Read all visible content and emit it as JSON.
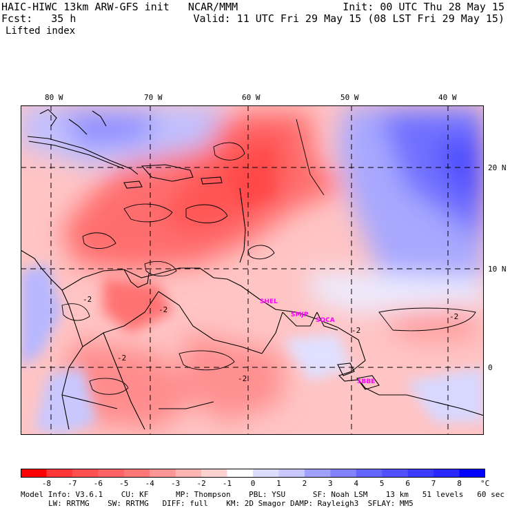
{
  "header": {
    "left_line1": "HAIC-HIWC 13km ARW-GFS init   NCAR/MMM",
    "left_line2": "Fcst:   35 h",
    "field": "Lifted index",
    "right_line1": "Init: 00 UTC Thu 28 May 15",
    "right_line2": "Valid: 11 UTC Fri 29 May 15 (08 LST Fri 29 May 15)"
  },
  "map": {
    "lon_labels": [
      "80 W",
      "70 W",
      "60 W",
      "50 W",
      "40 W"
    ],
    "lat_labels": [
      "20 N",
      "10 N",
      "0"
    ],
    "stations": [
      "SHEL",
      "SMJP",
      "SOCA",
      "SBBE"
    ],
    "contour_labels": [
      "-2",
      "-2",
      "-2",
      "-2",
      "-2",
      "-2"
    ]
  },
  "colorbar": {
    "labels": [
      "-8",
      "-7",
      "-6",
      "-5",
      "-4",
      "-3",
      "-2",
      "-1",
      "0",
      "1",
      "2",
      "3",
      "4",
      "5",
      "6",
      "7",
      "8"
    ],
    "unit": "°C",
    "colors": [
      "#ff0000",
      "#ff3636",
      "#ff5050",
      "#ff6464",
      "#ff7878",
      "#ff9696",
      "#ffb4b4",
      "#ffd2d2",
      "#ffffff",
      "#dcdcff",
      "#c8c8ff",
      "#a0a0ff",
      "#8282ff",
      "#6464ff",
      "#5050ff",
      "#3c3cff",
      "#2828ff",
      "#0000ff"
    ]
  },
  "footer": {
    "line1": "Model Info: V3.6.1    CU: KF      MP: Thompson    PBL: YSU      SF: Noah LSM    13 km   51 levels   60 sec",
    "line2": "LW: RRTMG    SW: RRTMG   DIFF: full    KM: 2D Smagor DAMP: Rayleigh3  SFLAY: MM5"
  }
}
